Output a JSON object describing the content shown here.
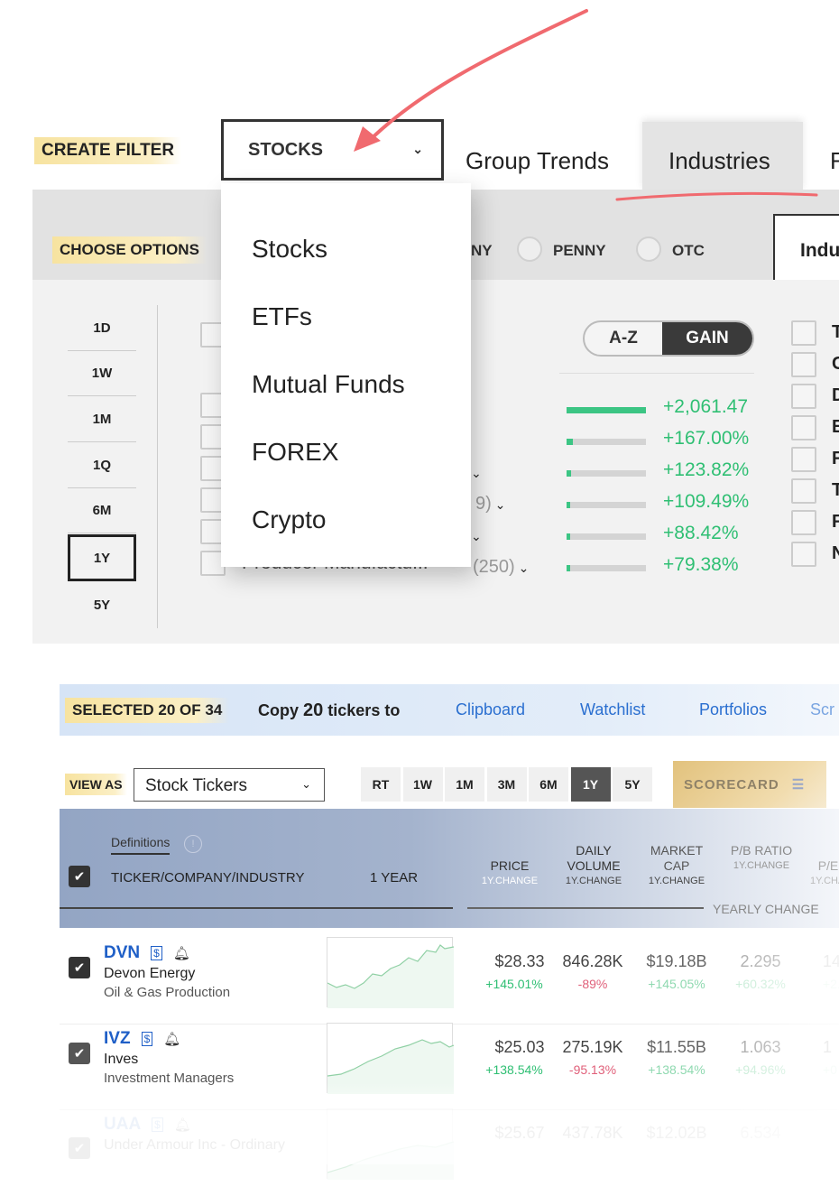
{
  "filter": {
    "create_label": "CREATE FILTER",
    "select_value": "STOCKS"
  },
  "tabs": [
    {
      "label": "Group Trends"
    },
    {
      "label": "Industries",
      "active": true
    },
    {
      "label": "F"
    }
  ],
  "options": {
    "label": "CHOOSE OPTIONS",
    "radio_partial": "NY",
    "radios": [
      "PENNY",
      "OTC"
    ],
    "industry_tab": "Indu"
  },
  "periods": [
    "1D",
    "1W",
    "1M",
    "1Q",
    "6M",
    "1Y",
    "5Y"
  ],
  "selected_period": "1Y",
  "sort_toggle": {
    "az": "A-Z",
    "gain": "GAIN",
    "active": "GAIN"
  },
  "industry_rows": [
    {
      "count_partial": "",
      "gain": "+2,061.47",
      "bar": 1.0
    },
    {
      "count_partial": "",
      "gain": "+167.00%",
      "bar": 0.08
    },
    {
      "count_partial": "",
      "gain": "+123.82%",
      "bar": 0.06
    },
    {
      "count_partial": "9)",
      "gain": "+109.49%",
      "bar": 0.05
    },
    {
      "count_partial": "",
      "gain": "+88.42%",
      "bar": 0.04
    },
    {
      "name": "Producer Manufactu...",
      "count_partial": "(250)",
      "gain": "+79.38%",
      "bar": 0.03
    }
  ],
  "right_list_letters": [
    "T",
    "C",
    "D",
    "E",
    "F",
    "T",
    "F",
    "N"
  ],
  "dropdown": {
    "items": [
      "Stocks",
      "ETFs",
      "Mutual Funds",
      "FOREX",
      "Crypto"
    ]
  },
  "selection": {
    "label": "SELECTED 20 OF 34",
    "copy_prefix": "Copy",
    "copy_count": "20",
    "copy_suffix": "tickers to",
    "links": [
      "Clipboard",
      "Watchlist",
      "Portfolios",
      "Scr"
    ]
  },
  "view": {
    "label": "VIEW AS",
    "select_value": "Stock Tickers",
    "periods": [
      "RT",
      "1W",
      "1M",
      "3M",
      "6M",
      "1Y",
      "5Y"
    ],
    "active_period": "1Y",
    "scorecard": "SCORECARD"
  },
  "table": {
    "definitions": "Definitions",
    "headers": {
      "ticker": "TICKER/COMPANY/INDUSTRY",
      "chart": "1 YEAR",
      "price": "PRICE",
      "volume": "DAILY VOLUME",
      "cap": "MARKET CAP",
      "pb": "P/B RATIO",
      "pe": "P/E",
      "sub": "1Y.CHANGE",
      "yearly": "YEARLY CHANGE"
    },
    "rows": [
      {
        "ticker": "DVN",
        "company": "Devon Energy",
        "industry": "Oil & Gas Production",
        "price": "$28.33",
        "price_chg": "+145.01%",
        "volume": "846.28K",
        "volume_chg": "-89%",
        "cap": "$19.18B",
        "cap_chg": "+145.05%",
        "pb": "2.295",
        "pb_chg": "+60.32%",
        "pe": "14",
        "pe_chg": "+2.0"
      },
      {
        "ticker": "IVZ",
        "company": "Inves",
        "industry": "Investment Managers",
        "price": "$25.03",
        "price_chg": "+138.54%",
        "volume": "275.19K",
        "volume_chg": "-95.13%",
        "cap": "$11.55B",
        "cap_chg": "+138.54%",
        "pb": "1.063",
        "pb_chg": "+94.96%",
        "pe": "1",
        "pe_chg": "+0"
      },
      {
        "ticker": "UAA",
        "company": "Under Armour Inc - Ordinary",
        "industry": "",
        "price": "$25.67",
        "price_chg": "",
        "volume": "437.78K",
        "volume_chg": "",
        "cap": "$12.02B",
        "cap_chg": "",
        "pb": "6.534",
        "pb_chg": "",
        "pe": "",
        "pe_chg": ""
      }
    ]
  },
  "colors": {
    "accent_blue": "#2a6fd0",
    "gain_green": "#2fbf73",
    "loss_red": "#e0607a",
    "annotation_red": "#f06a6f",
    "label_yellow": "#f7e3a0"
  }
}
